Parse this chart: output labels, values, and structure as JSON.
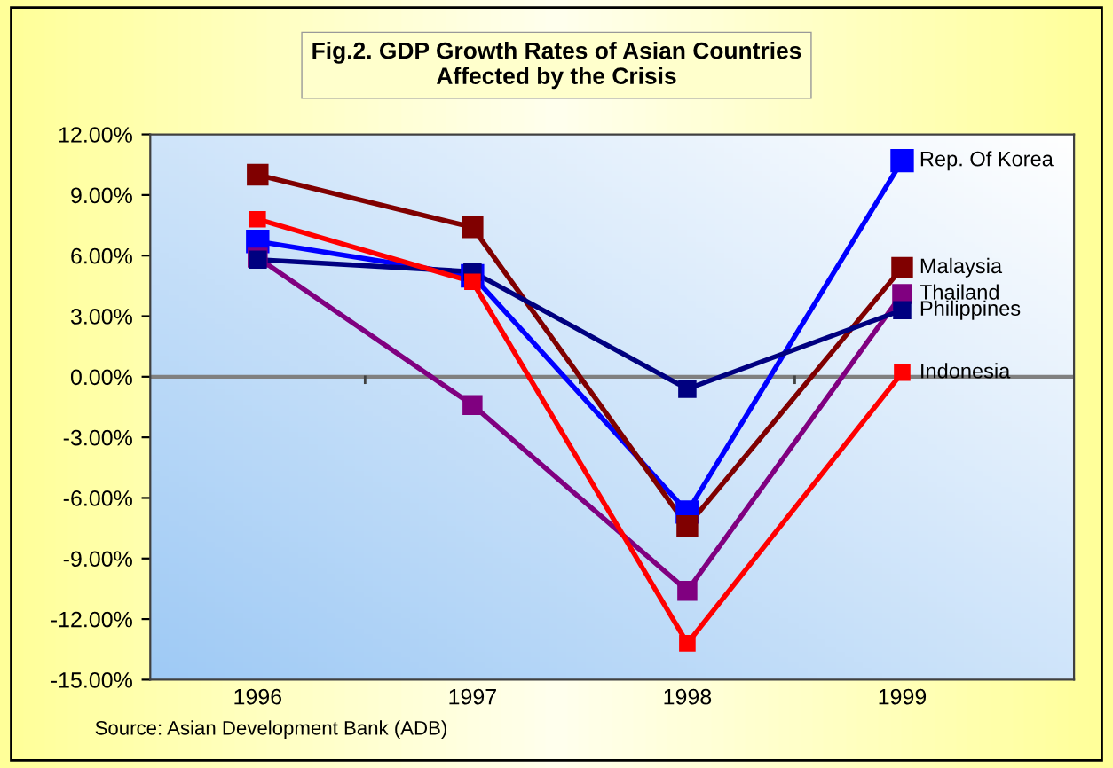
{
  "chart_data": {
    "type": "line",
    "title": "Fig.2. GDP Growth Rates of Asian Countries\nAffected by the Crisis",
    "categories": [
      "1996",
      "1997",
      "1998",
      "1999"
    ],
    "series": [
      {
        "name": "Rep. Of Korea",
        "color": "#0000ff",
        "values": [
          6.7,
          5.0,
          -6.7,
          10.7
        ]
      },
      {
        "name": "Malaysia",
        "color": "#800000",
        "values": [
          10.0,
          7.4,
          -7.4,
          5.4
        ]
      },
      {
        "name": "Thailand",
        "color": "#800080",
        "values": [
          5.9,
          -1.4,
          -10.6,
          4.1
        ]
      },
      {
        "name": "Philippines",
        "color": "#000080",
        "values": [
          5.8,
          5.2,
          -0.6,
          3.3
        ]
      },
      {
        "name": "Indonesia",
        "color": "#ff0000",
        "values": [
          7.8,
          4.7,
          -13.2,
          0.2
        ]
      }
    ],
    "ylim": [
      -15,
      12
    ],
    "yticks": [
      {
        "value": -15,
        "label": "-15.00%"
      },
      {
        "value": -12,
        "label": "-12.00%"
      },
      {
        "value": -9,
        "label": "-9.00%"
      },
      {
        "value": -6,
        "label": "-6.00%"
      },
      {
        "value": -3,
        "label": "-3.00%"
      },
      {
        "value": 0,
        "label": "0.00%"
      },
      {
        "value": 3,
        "label": "3.00%"
      },
      {
        "value": 6,
        "label": "6.00%"
      },
      {
        "value": 9,
        "label": "9.00%"
      },
      {
        "value": 12,
        "label": "12.00%"
      }
    ],
    "ref_lines": [
      {
        "axis": "y",
        "value": 0,
        "color": "#808080",
        "line_style": "solid"
      }
    ],
    "marker": "square",
    "line_style": "solid",
    "grid": false,
    "legend": false,
    "annotations": [
      "Source: Asian Development Bank (ADB)"
    ]
  }
}
